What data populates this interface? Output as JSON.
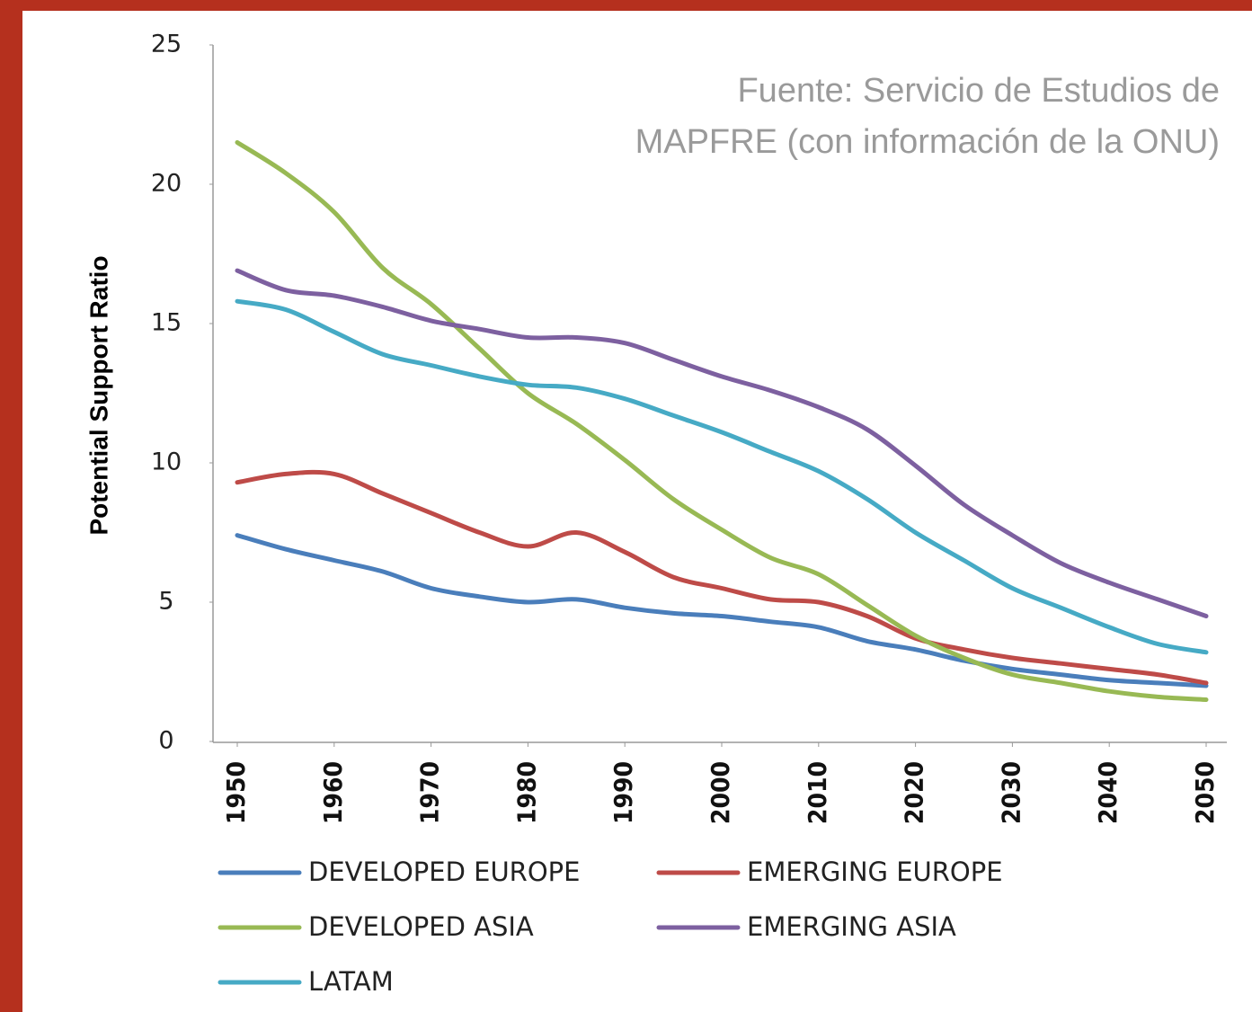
{
  "chart_data": {
    "type": "line",
    "annotation": [
      "Fuente: Servicio de Estudios de",
      "MAPFRE (con información de la ONU)"
    ],
    "ylabel": "Potential Support Ratio",
    "x": [
      1950,
      1955,
      1960,
      1965,
      1970,
      1975,
      1980,
      1985,
      1990,
      1995,
      2000,
      2005,
      2010,
      2015,
      2020,
      2025,
      2030,
      2035,
      2040,
      2045,
      2050
    ],
    "xlim": [
      1950,
      2050
    ],
    "xticks": [
      1950,
      1960,
      1970,
      1980,
      1990,
      2000,
      2010,
      2020,
      2030,
      2040,
      2050
    ],
    "ylim": [
      0,
      25
    ],
    "yticks": [
      0,
      5,
      10,
      15,
      20,
      25
    ],
    "series": [
      {
        "name": "DEVELOPED EUROPE",
        "color": "#4a7ebb",
        "values": [
          7.4,
          6.9,
          6.5,
          6.1,
          5.5,
          5.2,
          5.0,
          5.1,
          4.8,
          4.6,
          4.5,
          4.3,
          4.1,
          3.6,
          3.3,
          2.9,
          2.6,
          2.4,
          2.2,
          2.1,
          2.0
        ]
      },
      {
        "name": "EMERGING EUROPE",
        "color": "#be4b48",
        "values": [
          9.3,
          9.6,
          9.6,
          8.9,
          8.2,
          7.5,
          7.0,
          7.5,
          6.8,
          5.9,
          5.5,
          5.1,
          5.0,
          4.5,
          3.7,
          3.3,
          3.0,
          2.8,
          2.6,
          2.4,
          2.1
        ]
      },
      {
        "name": "DEVELOPED ASIA",
        "color": "#98b954",
        "values": [
          21.5,
          20.4,
          19.0,
          17.0,
          15.7,
          14.1,
          12.5,
          11.4,
          10.1,
          8.7,
          7.6,
          6.6,
          6.0,
          4.9,
          3.8,
          3.0,
          2.4,
          2.1,
          1.8,
          1.6,
          1.5
        ]
      },
      {
        "name": "EMERGING ASIA",
        "color": "#7d60a0",
        "values": [
          16.9,
          16.2,
          16.0,
          15.6,
          15.1,
          14.8,
          14.5,
          14.5,
          14.3,
          13.7,
          13.1,
          12.6,
          12.0,
          11.2,
          9.9,
          8.5,
          7.4,
          6.4,
          5.7,
          5.1,
          4.5
        ]
      },
      {
        "name": "LATAM",
        "color": "#46aac5",
        "values": [
          15.8,
          15.5,
          14.7,
          13.9,
          13.5,
          13.1,
          12.8,
          12.7,
          12.3,
          11.7,
          11.1,
          10.4,
          9.7,
          8.7,
          7.5,
          6.5,
          5.5,
          4.8,
          4.1,
          3.5,
          3.2
        ]
      }
    ]
  }
}
